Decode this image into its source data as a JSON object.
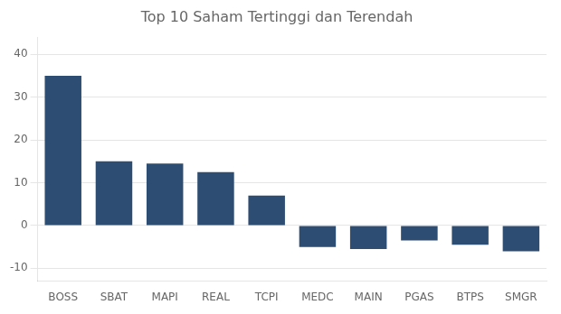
{
  "chart_data": {
    "type": "bar",
    "title": "Top 10 Saham Tertinggi dan Terendah",
    "categories": [
      "BOSS",
      "SBAT",
      "MAPI",
      "REAL",
      "TCPI",
      "MEDC",
      "MAIN",
      "PGAS",
      "BTPS",
      "SMGR"
    ],
    "values": [
      35,
      15,
      14.5,
      12.5,
      7,
      -5,
      -5.5,
      -3.5,
      -4.5,
      -6
    ],
    "color": "#2e4d73",
    "ylim": [
      -13,
      44
    ],
    "yticks": [
      -10,
      0,
      10,
      20,
      30,
      40
    ],
    "grid": true
  }
}
